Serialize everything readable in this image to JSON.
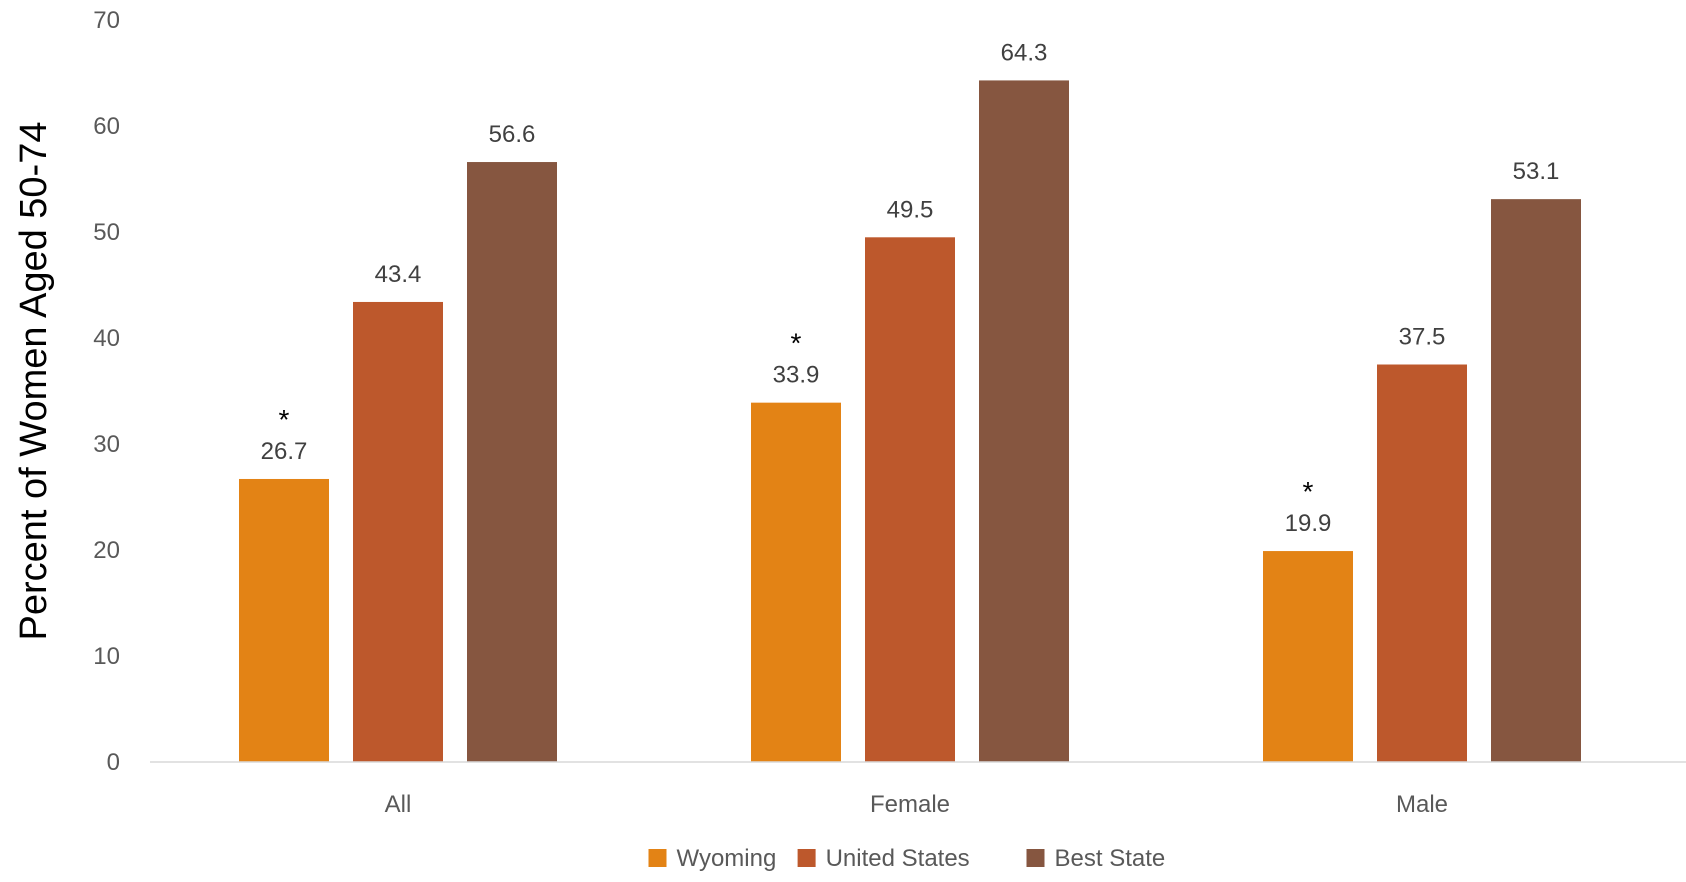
{
  "chart_data": {
    "type": "bar",
    "ylabel": "Percent of Women Aged 50-74",
    "xlabel": "",
    "ylim": [
      0,
      70
    ],
    "yticks": [
      0,
      10,
      20,
      30,
      40,
      50,
      60,
      70
    ],
    "categories": [
      "All",
      "Female",
      "Male"
    ],
    "grid": false,
    "legend_position": "bottom",
    "series": [
      {
        "name": "Wyoming",
        "color": "#E38315",
        "values": [
          26.7,
          33.9,
          19.9
        ],
        "labels": [
          "26.7",
          "33.9",
          "19.9"
        ],
        "markers": [
          "*",
          "*",
          "*"
        ]
      },
      {
        "name": "United States",
        "color": "#BD582C",
        "values": [
          43.4,
          49.5,
          37.5
        ],
        "labels": [
          "43.4",
          "49.5",
          "37.5"
        ],
        "markers": [
          "",
          "",
          ""
        ]
      },
      {
        "name": "Best State",
        "color": "#865640",
        "values": [
          56.6,
          64.3,
          53.1
        ],
        "labels": [
          "56.6",
          "64.3",
          "53.1"
        ],
        "markers": [
          "",
          "",
          ""
        ]
      }
    ]
  }
}
